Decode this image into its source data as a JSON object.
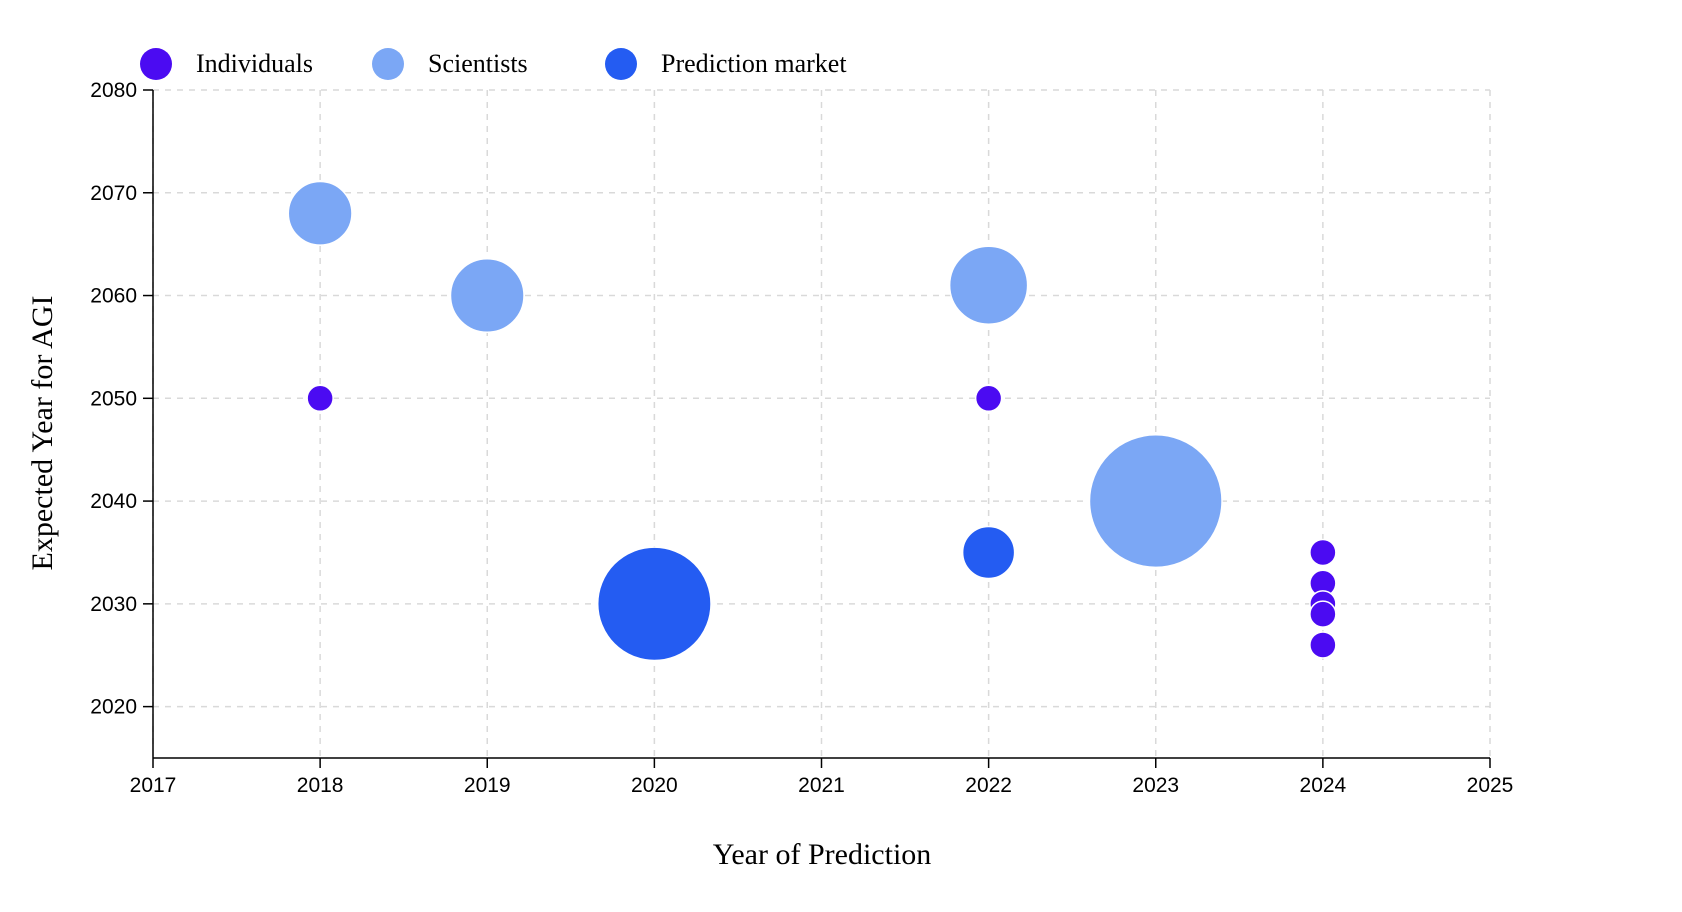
{
  "chart_data": {
    "type": "scatter",
    "xlabel": "Year of Prediction",
    "ylabel": "Expected Year for AGI",
    "xlim": [
      2017,
      2025
    ],
    "ylim": [
      2015,
      2080
    ],
    "x_ticks": [
      2017,
      2018,
      2019,
      2020,
      2021,
      2022,
      2023,
      2024,
      2025
    ],
    "y_ticks": [
      2020,
      2030,
      2040,
      2050,
      2060,
      2070,
      2080
    ],
    "grid": true,
    "legend_position": "top-left",
    "size_encoding": "relative bubble area",
    "series": [
      {
        "name": "Individuals",
        "color": "#4B0BF2",
        "points": [
          {
            "x": 2018,
            "y": 2050,
            "size": 1
          },
          {
            "x": 2022,
            "y": 2050,
            "size": 1
          },
          {
            "x": 2024,
            "y": 2035,
            "size": 1
          },
          {
            "x": 2024,
            "y": 2032,
            "size": 1
          },
          {
            "x": 2024,
            "y": 2030,
            "size": 1
          },
          {
            "x": 2024,
            "y": 2029,
            "size": 1
          },
          {
            "x": 2024,
            "y": 2026,
            "size": 1
          }
        ]
      },
      {
        "name": "Scientists",
        "color": "#7BA7F5",
        "points": [
          {
            "x": 2018,
            "y": 2068,
            "size": 6
          },
          {
            "x": 2019,
            "y": 2060,
            "size": 8
          },
          {
            "x": 2022,
            "y": 2061,
            "size": 9
          },
          {
            "x": 2023,
            "y": 2040,
            "size": 26
          }
        ]
      },
      {
        "name": "Prediction market",
        "color": "#245CF2",
        "points": [
          {
            "x": 2020,
            "y": 2030,
            "size": 19
          },
          {
            "x": 2022,
            "y": 2035,
            "size": 4
          }
        ]
      }
    ]
  }
}
